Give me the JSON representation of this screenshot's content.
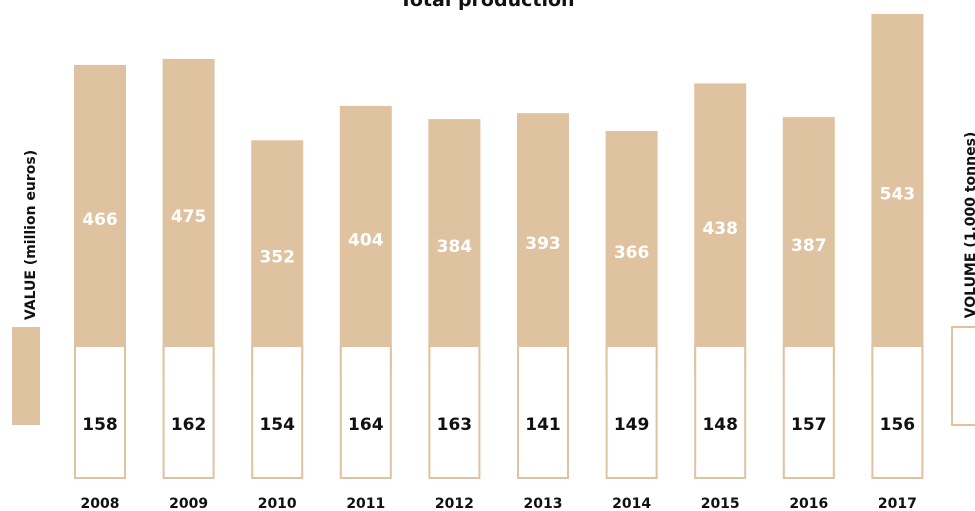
{
  "chart_data": {
    "type": "bar",
    "title": "Total production",
    "categories": [
      "2008",
      "2009",
      "2010",
      "2011",
      "2012",
      "2013",
      "2014",
      "2015",
      "2016",
      "2017"
    ],
    "series": [
      {
        "name": "VALUE (million euros)",
        "values": [
          466,
          475,
          352,
          404,
          384,
          393,
          366,
          438,
          387,
          543
        ],
        "color": "#dfc29f"
      },
      {
        "name": "VOLUME (1.000 tonnes)",
        "values": [
          158,
          162,
          154,
          164,
          163,
          141,
          149,
          148,
          157,
          156
        ],
        "color": "#ffffff",
        "stroke": "#dfc29f"
      }
    ],
    "ylabel_left": "VALUE (million euros)",
    "ylabel_right": "VOLUME (1.000 tonnes)",
    "legend": "left and right sides, swatches below vertical axis labels",
    "grid": false
  }
}
